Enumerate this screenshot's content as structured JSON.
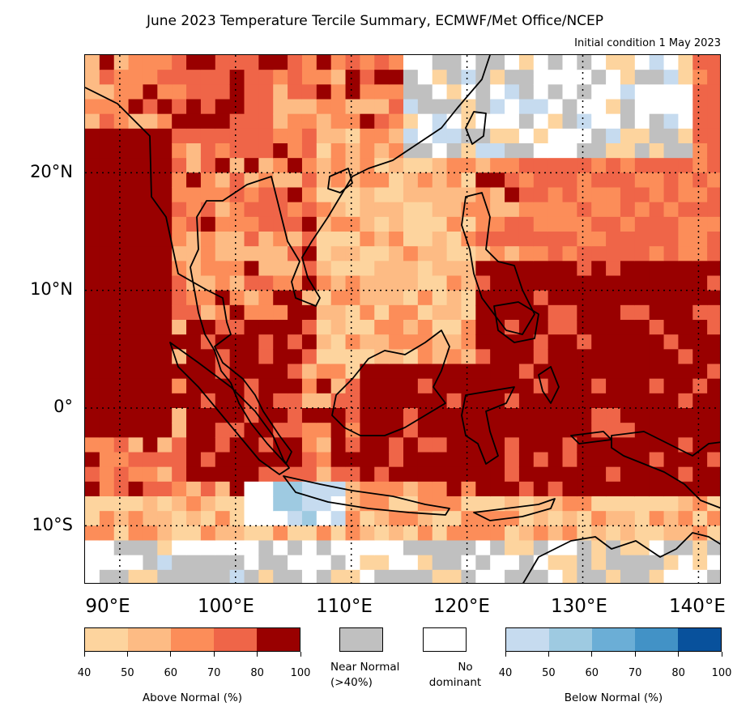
{
  "title": "June 2023 Temperature Tercile Summary, ECMWF/Met Office/NCEP",
  "subtitle": "Initial condition 1 May 2023",
  "lat_labels": [
    "20°N",
    "10°N",
    "0°",
    "10°S"
  ],
  "lon_labels": [
    "90°E",
    "100°E",
    "110°E",
    "120°E",
    "130°E",
    "140°E"
  ],
  "legend": {
    "above": {
      "caption": "Above Normal (%)",
      "colors": [
        "#fdd49e",
        "#fdbb84",
        "#fc8d59",
        "#ef6548",
        "#990000"
      ],
      "ticks": [
        "40",
        "50",
        "60",
        "70",
        "80",
        "100"
      ]
    },
    "near_normal": {
      "line1": "Near Normal",
      "line2": "(>40%)",
      "color": "#c0c0c0"
    },
    "no_dominant": {
      "line1": "No",
      "line2": "dominant",
      "color": "#ffffff"
    },
    "below": {
      "caption": "Below Normal (%)",
      "colors": [
        "#c6dbef",
        "#9ecae1",
        "#6baed6",
        "#4292c6",
        "#08519c"
      ],
      "ticks": [
        "40",
        "50",
        "60",
        "70",
        "80",
        "100"
      ]
    }
  },
  "map": {
    "lon_range": [
      87,
      142
    ],
    "lat_range": [
      -15,
      30
    ],
    "gridline_lons": [
      90,
      100,
      110,
      120,
      130,
      140
    ],
    "gridline_lats": [
      -10,
      0,
      10,
      20
    ]
  }
}
